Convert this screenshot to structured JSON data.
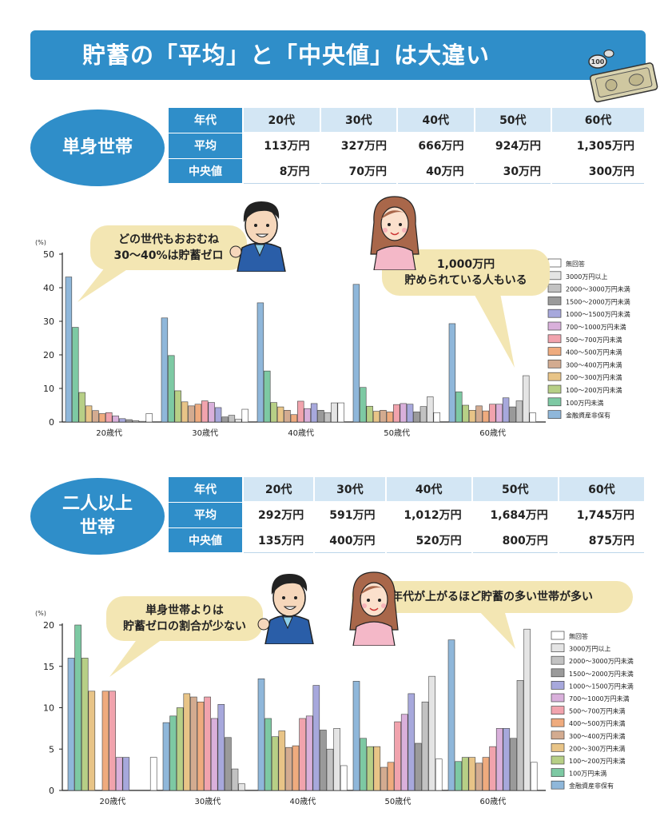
{
  "title": "貯蓄の「平均」と「中央値」は大違い",
  "money_coin_text": "100",
  "colors": {
    "brand": "#2f8ec9",
    "header_cell": "#d3e6f4",
    "bubble": "#f3e6b3"
  },
  "single": {
    "label_lines": [
      "単身世帯"
    ],
    "table": {
      "header": [
        "年代",
        "20代",
        "30代",
        "40代",
        "50代",
        "60代"
      ],
      "rows": [
        {
          "label": "平均",
          "values": [
            "113万円",
            "327万円",
            "666万円",
            "924万円",
            "1,305万円"
          ]
        },
        {
          "label": "中央値",
          "values": [
            "8万円",
            "70万円",
            "40万円",
            "30万円",
            "300万円"
          ]
        }
      ]
    },
    "bubble_left": [
      "どの世代もおおむね",
      "30～40%は貯蓄ゼロ"
    ],
    "bubble_right": [
      "1,000万円",
      "貯められている人もいる"
    ]
  },
  "multi": {
    "label_lines": [
      "二人以上",
      "世帯"
    ],
    "table": {
      "header": [
        "年代",
        "20代",
        "30代",
        "40代",
        "50代",
        "60代"
      ],
      "rows": [
        {
          "label": "平均",
          "values": [
            "292万円",
            "591万円",
            "1,012万円",
            "1,684万円",
            "1,745万円"
          ]
        },
        {
          "label": "中央値",
          "values": [
            "135万円",
            "400万円",
            "520万円",
            "800万円",
            "875万円"
          ]
        }
      ]
    },
    "bubble_left": [
      "単身世帯よりは",
      "貯蓄ゼロの割合が少ない"
    ],
    "bubble_right": [
      "年代が上がるほど貯蓄の多い世帯が多い"
    ]
  },
  "chart_data": [
    {
      "type": "bar",
      "title": "単身世帯",
      "ylabel": "(%)",
      "ylim": [
        0,
        50
      ],
      "yticks": [
        0,
        10,
        20,
        30,
        40,
        50
      ],
      "categories": [
        "20歳代",
        "30歳代",
        "40歳代",
        "50歳代",
        "60歳代"
      ],
      "legend_position": "right",
      "series": [
        {
          "name": "金融資産非保有",
          "color": "#8fb7da",
          "values": [
            43.2,
            31.0,
            35.5,
            41.0,
            29.3
          ]
        },
        {
          "name": "100万円未満",
          "color": "#7dc9a3",
          "values": [
            28.2,
            19.8,
            15.2,
            10.3,
            9.0
          ]
        },
        {
          "name": "100～200万円未満",
          "color": "#b7cf86",
          "values": [
            8.8,
            9.3,
            5.8,
            4.7,
            5.0
          ]
        },
        {
          "name": "200～300万円未満",
          "color": "#e8c487",
          "values": [
            4.8,
            6.0,
            4.5,
            3.2,
            3.5
          ]
        },
        {
          "name": "300～400万円未満",
          "color": "#d3ab90",
          "values": [
            3.4,
            4.8,
            3.5,
            3.5,
            4.8
          ]
        },
        {
          "name": "400～500万円未満",
          "color": "#efab7e",
          "values": [
            2.5,
            5.3,
            2.2,
            3.0,
            3.3
          ]
        },
        {
          "name": "500～700万円未満",
          "color": "#f1a3ad",
          "values": [
            2.8,
            6.3,
            6.2,
            5.2,
            5.3
          ]
        },
        {
          "name": "700～1000万円未満",
          "color": "#d9b0db",
          "values": [
            1.8,
            5.8,
            4.0,
            5.5,
            5.3
          ]
        },
        {
          "name": "1000～1500万円未満",
          "color": "#a7a8dc",
          "values": [
            1.0,
            4.3,
            5.5,
            5.3,
            7.2
          ]
        },
        {
          "name": "1500～2000万円未満",
          "color": "#9a9a9a",
          "values": [
            0.7,
            1.5,
            3.5,
            3.0,
            4.5
          ]
        },
        {
          "name": "2000～3000万円未満",
          "color": "#c2c2c2",
          "values": [
            0.4,
            2.0,
            2.8,
            4.6,
            6.3
          ]
        },
        {
          "name": "3000万円以上",
          "color": "#e4e4e4",
          "values": [
            0.2,
            0.8,
            5.7,
            7.5,
            13.8
          ]
        },
        {
          "name": "無回答",
          "color": "#ffffff",
          "values": [
            2.5,
            3.8,
            5.7,
            2.8,
            2.7
          ]
        }
      ]
    },
    {
      "type": "bar",
      "title": "二人以上世帯",
      "ylabel": "(%)",
      "ylim": [
        0,
        20
      ],
      "yticks": [
        0,
        5,
        10,
        15,
        20
      ],
      "categories": [
        "20歳代",
        "30歳代",
        "40歳代",
        "50歳代",
        "60歳代"
      ],
      "legend_position": "right",
      "series": [
        {
          "name": "金融資産非保有",
          "color": "#8fb7da",
          "values": [
            16.0,
            8.2,
            13.5,
            13.2,
            18.2
          ]
        },
        {
          "name": "100万円未満",
          "color": "#7dc9a3",
          "values": [
            20.0,
            9.0,
            8.7,
            6.3,
            3.5
          ]
        },
        {
          "name": "100～200万円未満",
          "color": "#b7cf86",
          "values": [
            16.0,
            10.0,
            6.5,
            5.3,
            4.0
          ]
        },
        {
          "name": "200～300万円未満",
          "color": "#e8c487",
          "values": [
            12.0,
            11.7,
            7.2,
            5.3,
            4.0
          ]
        },
        {
          "name": "300～400万円未満",
          "color": "#d3ab90",
          "values": [
            0,
            11.3,
            5.2,
            2.8,
            3.3
          ]
        },
        {
          "name": "400～500万円未満",
          "color": "#efab7e",
          "values": [
            12.0,
            10.7,
            5.4,
            3.4,
            4.0
          ]
        },
        {
          "name": "500～700万円未満",
          "color": "#f1a3ad",
          "values": [
            12.0,
            11.3,
            8.7,
            8.3,
            5.3
          ]
        },
        {
          "name": "700～1000万円未満",
          "color": "#d9b0db",
          "values": [
            4.0,
            8.7,
            9.0,
            9.2,
            7.5
          ]
        },
        {
          "name": "1000～1500万円未満",
          "color": "#a7a8dc",
          "values": [
            4.0,
            10.4,
            12.7,
            11.7,
            7.5
          ]
        },
        {
          "name": "1500～2000万円未満",
          "color": "#9a9a9a",
          "values": [
            0,
            6.4,
            7.3,
            5.7,
            6.3
          ]
        },
        {
          "name": "2000～3000万円未満",
          "color": "#c2c2c2",
          "values": [
            0,
            2.6,
            5.0,
            10.7,
            13.3
          ]
        },
        {
          "name": "3000万円以上",
          "color": "#e4e4e4",
          "values": [
            0,
            0.8,
            7.5,
            13.8,
            19.5
          ]
        },
        {
          "name": "無回答",
          "color": "#ffffff",
          "values": [
            4.0,
            0,
            3.0,
            3.8,
            3.4
          ]
        }
      ]
    }
  ]
}
